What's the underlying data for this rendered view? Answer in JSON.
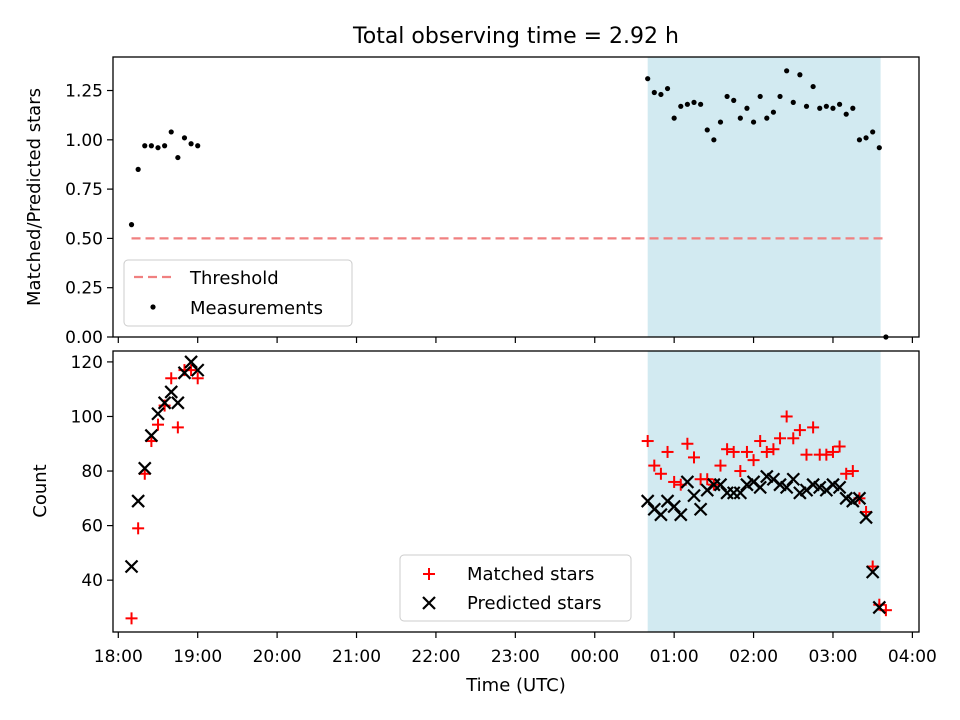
{
  "figure": {
    "title": "Total observing time = 2.92 h",
    "xlabel": "Time (UTC)",
    "x_ticks": [
      "18:00",
      "19:00",
      "20:00",
      "21:00",
      "22:00",
      "23:00",
      "00:00",
      "01:00",
      "02:00",
      "03:00",
      "04:00"
    ],
    "x_tick_times": [
      "18:00",
      "19:00",
      "20:00",
      "21:00",
      "22:00",
      "23:00",
      "00:00",
      "01:00",
      "02:00",
      "03:00",
      "04:00"
    ],
    "xlim": [
      "17:56",
      "04:05"
    ],
    "highlight": {
      "start": "00:40",
      "end": "03:36",
      "color": "#add8e6"
    }
  },
  "chart_data": [
    {
      "type": "scatter",
      "ylabel": "Matched/Predicted stars",
      "ylim": [
        0,
        1.42
      ],
      "yticks": [
        "0.00",
        "0.25",
        "0.50",
        "0.75",
        "1.00",
        "1.25"
      ],
      "ytick_values": [
        0,
        0.25,
        0.5,
        0.75,
        1.0,
        1.25
      ],
      "legend": {
        "position": "lower-left",
        "entries": [
          "Threshold",
          "Measurements"
        ]
      },
      "threshold": {
        "name": "Threshold",
        "value": 0.5,
        "x_range": [
          "18:10",
          "03:40"
        ],
        "color": "#f08080"
      },
      "series": [
        {
          "name": "Measurements",
          "color": "#000000",
          "points": [
            [
              "18:10",
              0.57
            ],
            [
              "18:15",
              0.85
            ],
            [
              "18:20",
              0.97
            ],
            [
              "18:25",
              0.97
            ],
            [
              "18:30",
              0.96
            ],
            [
              "18:35",
              0.97
            ],
            [
              "18:40",
              1.04
            ],
            [
              "18:45",
              0.91
            ],
            [
              "18:50",
              1.01
            ],
            [
              "18:55",
              0.98
            ],
            [
              "19:00",
              0.97
            ],
            [
              "00:40",
              1.31
            ],
            [
              "00:45",
              1.24
            ],
            [
              "00:50",
              1.23
            ],
            [
              "00:55",
              1.26
            ],
            [
              "01:00",
              1.11
            ],
            [
              "01:05",
              1.17
            ],
            [
              "01:10",
              1.18
            ],
            [
              "01:15",
              1.19
            ],
            [
              "01:20",
              1.18
            ],
            [
              "01:25",
              1.05
            ],
            [
              "01:30",
              1.0
            ],
            [
              "01:35",
              1.09
            ],
            [
              "01:40",
              1.22
            ],
            [
              "01:45",
              1.2
            ],
            [
              "01:50",
              1.11
            ],
            [
              "01:55",
              1.16
            ],
            [
              "02:00",
              1.09
            ],
            [
              "02:05",
              1.22
            ],
            [
              "02:10",
              1.11
            ],
            [
              "02:15",
              1.14
            ],
            [
              "02:20",
              1.22
            ],
            [
              "02:25",
              1.35
            ],
            [
              "02:30",
              1.19
            ],
            [
              "02:35",
              1.33
            ],
            [
              "02:40",
              1.17
            ],
            [
              "02:45",
              1.27
            ],
            [
              "02:50",
              1.16
            ],
            [
              "02:55",
              1.17
            ],
            [
              "03:00",
              1.16
            ],
            [
              "03:05",
              1.18
            ],
            [
              "03:10",
              1.13
            ],
            [
              "03:15",
              1.16
            ],
            [
              "03:20",
              1.0
            ],
            [
              "03:25",
              1.01
            ],
            [
              "03:30",
              1.04
            ],
            [
              "03:35",
              0.96
            ],
            [
              "03:40",
              0.0
            ]
          ]
        }
      ]
    },
    {
      "type": "scatter",
      "ylabel": "Count",
      "ylim": [
        21,
        124
      ],
      "yticks": [
        "40",
        "60",
        "80",
        "100",
        "120"
      ],
      "ytick_values": [
        40,
        60,
        80,
        100,
        120
      ],
      "legend": {
        "position": "lower-center",
        "entries": [
          "Matched stars",
          "Predicted stars"
        ]
      },
      "series": [
        {
          "name": "Matched stars",
          "marker": "plus",
          "color": "#ff0000",
          "points": [
            [
              "18:10",
              26
            ],
            [
              "18:15",
              59
            ],
            [
              "18:20",
              79
            ],
            [
              "18:25",
              91
            ],
            [
              "18:30",
              97
            ],
            [
              "18:35",
              104
            ],
            [
              "18:40",
              114
            ],
            [
              "18:45",
              96
            ],
            [
              "18:50",
              117
            ],
            [
              "18:55",
              117
            ],
            [
              "19:00",
              114
            ],
            [
              "00:40",
              91
            ],
            [
              "00:45",
              82
            ],
            [
              "00:50",
              79
            ],
            [
              "00:55",
              87
            ],
            [
              "01:00",
              76
            ],
            [
              "01:05",
              75
            ],
            [
              "01:10",
              90
            ],
            [
              "01:15",
              85
            ],
            [
              "01:20",
              77
            ],
            [
              "01:25",
              77
            ],
            [
              "01:30",
              75
            ],
            [
              "01:35",
              82
            ],
            [
              "01:40",
              88
            ],
            [
              "01:45",
              87
            ],
            [
              "01:50",
              80
            ],
            [
              "01:55",
              87
            ],
            [
              "02:00",
              84
            ],
            [
              "02:05",
              91
            ],
            [
              "02:10",
              87
            ],
            [
              "02:15",
              88
            ],
            [
              "02:20",
              92
            ],
            [
              "02:25",
              100
            ],
            [
              "02:30",
              92
            ],
            [
              "02:35",
              95
            ],
            [
              "02:40",
              86
            ],
            [
              "02:45",
              96
            ],
            [
              "02:50",
              86
            ],
            [
              "02:55",
              86
            ],
            [
              "03:00",
              87
            ],
            [
              "03:05",
              89
            ],
            [
              "03:10",
              79
            ],
            [
              "03:15",
              80
            ],
            [
              "03:20",
              70
            ],
            [
              "03:25",
              65
            ],
            [
              "03:30",
              45
            ],
            [
              "03:35",
              31
            ],
            [
              "03:40",
              29
            ]
          ]
        },
        {
          "name": "Predicted stars",
          "marker": "x",
          "color": "#000000",
          "points": [
            [
              "18:10",
              45
            ],
            [
              "18:15",
              69
            ],
            [
              "18:20",
              81
            ],
            [
              "18:25",
              93
            ],
            [
              "18:30",
              101
            ],
            [
              "18:35",
              105
            ],
            [
              "18:40",
              109
            ],
            [
              "18:45",
              105
            ],
            [
              "18:50",
              116
            ],
            [
              "18:55",
              120
            ],
            [
              "19:00",
              117
            ],
            [
              "00:40",
              69
            ],
            [
              "00:45",
              66
            ],
            [
              "00:50",
              64
            ],
            [
              "00:55",
              69
            ],
            [
              "01:00",
              67
            ],
            [
              "01:05",
              64
            ],
            [
              "01:10",
              76
            ],
            [
              "01:15",
              71
            ],
            [
              "01:20",
              66
            ],
            [
              "01:25",
              73
            ],
            [
              "01:30",
              75
            ],
            [
              "01:35",
              75
            ],
            [
              "01:40",
              72
            ],
            [
              "01:45",
              72
            ],
            [
              "01:50",
              72
            ],
            [
              "01:55",
              75
            ],
            [
              "02:00",
              76
            ],
            [
              "02:05",
              74
            ],
            [
              "02:10",
              78
            ],
            [
              "02:15",
              77
            ],
            [
              "02:20",
              75
            ],
            [
              "02:25",
              74
            ],
            [
              "02:30",
              77
            ],
            [
              "02:35",
              72
            ],
            [
              "02:40",
              73
            ],
            [
              "02:45",
              75
            ],
            [
              "02:50",
              74
            ],
            [
              "02:55",
              73
            ],
            [
              "03:00",
              75
            ],
            [
              "03:05",
              74
            ],
            [
              "03:10",
              70
            ],
            [
              "03:15",
              69
            ],
            [
              "03:20",
              70
            ],
            [
              "03:25",
              63
            ],
            [
              "03:30",
              43
            ],
            [
              "03:35",
              30
            ]
          ]
        }
      ]
    }
  ]
}
